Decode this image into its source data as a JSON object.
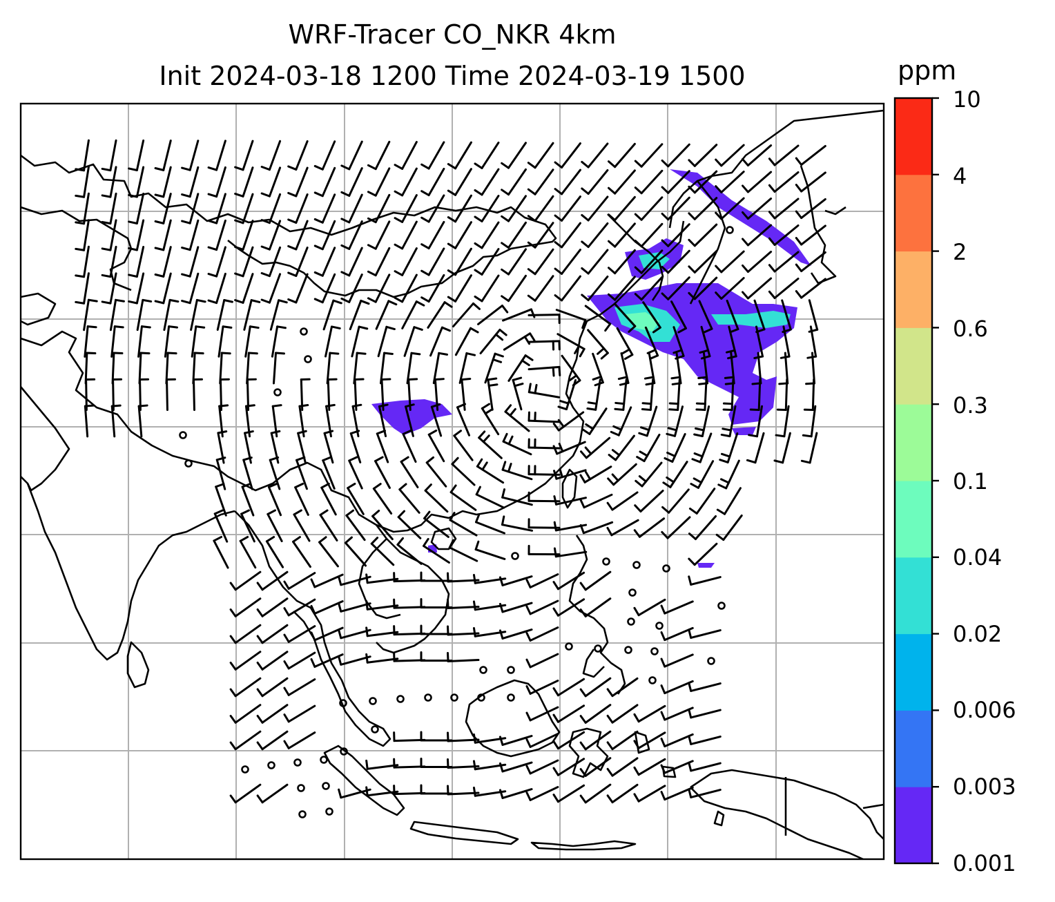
{
  "title_line1": "WRF-Tracer CO_NKR 4km",
  "title_line2": "Init 2024-03-18 1200 Time 2024-03-19 1500",
  "colorbar": {
    "unit": "ppm",
    "levels": [
      "0.001",
      "0.003",
      "0.006",
      "0.02",
      "0.04",
      "0.1",
      "0.3",
      "0.6",
      "2",
      "4",
      "10"
    ],
    "colors": [
      "#6528f5",
      "#3475f4",
      "#00b3ec",
      "#33e0d5",
      "#6dfcbd",
      "#9cfb98",
      "#d1e58a",
      "#fdb066",
      "#fd723e",
      "#fb2a16"
    ]
  },
  "plume_color_low": "#6528f5",
  "plume_color_mid": "#33e0d5",
  "plume_color_high": "#6dfcbd"
}
